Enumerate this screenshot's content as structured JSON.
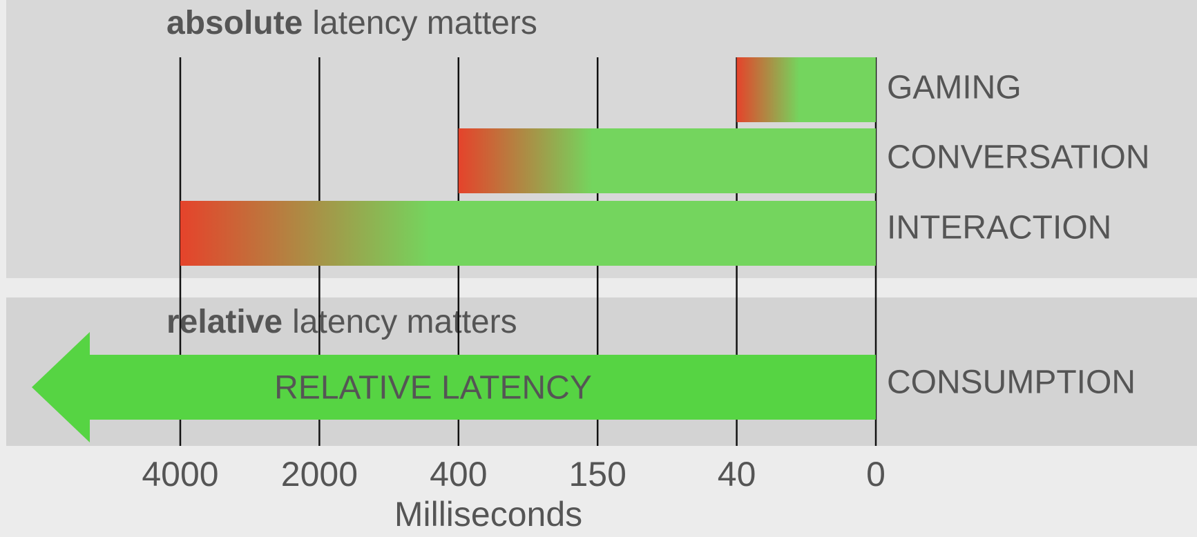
{
  "chart_data": {
    "type": "bar",
    "panels": [
      {
        "emphasis": "absolute",
        "title": "latency matters"
      },
      {
        "emphasis": "relative",
        "title": "latency matters"
      }
    ],
    "categories": [
      "GAMING",
      "CONVERSATION",
      "INTERACTION",
      "CONSUMPTION"
    ],
    "values": [
      40,
      400,
      4000,
      null
    ],
    "arrow_label": "RELATIVE LATENCY",
    "xlabel": "Milliseconds",
    "xlim": [
      4000,
      0
    ],
    "xticks": [
      4000,
      2000,
      400,
      150,
      40,
      0
    ],
    "color": "#74d55e",
    "gradient_color": "#e5432b",
    "arrow_color": "#56d443"
  }
}
